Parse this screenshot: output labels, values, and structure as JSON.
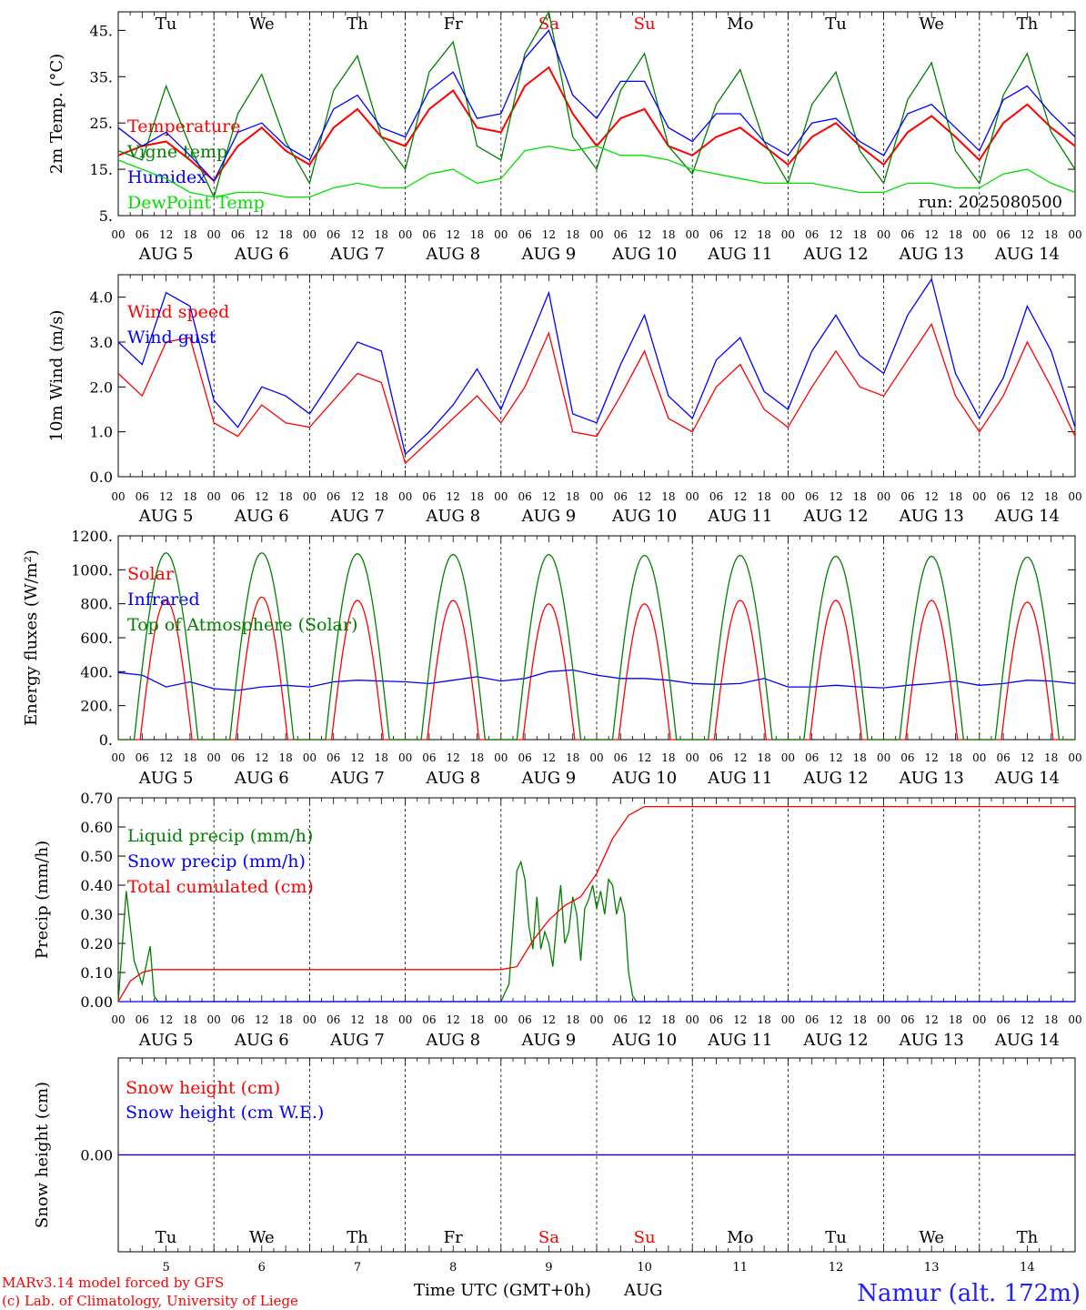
{
  "days": {
    "names": [
      "Tu",
      "We",
      "Th",
      "Fr",
      "Sa",
      "Su",
      "Mo",
      "Tu",
      "We",
      "Th"
    ],
    "dates": [
      "AUG  5",
      "AUG  6",
      "AUG  7",
      "AUG  8",
      "AUG  9",
      "AUG 10",
      "AUG 11",
      "AUG 12",
      "AUG 13",
      "AUG 14"
    ],
    "day_numbers": [
      "5",
      "6",
      "7",
      "8",
      "9",
      "10",
      "11",
      "12",
      "13",
      "14"
    ],
    "hour_ticks": [
      "00",
      "06",
      "12",
      "18"
    ],
    "final_tick": "00",
    "weekend_color": "#ff0000",
    "weekend_indices": [
      4,
      5
    ]
  },
  "run_label": "run: 2025080500",
  "footer": {
    "model": "MARv3.14 model forced by GFS",
    "lab": "(c) Lab. of Climatology, University of Liege",
    "xlabel": "Time UTC (GMT+0h)",
    "month": "AUG",
    "station": "Namur (alt. 172m)"
  },
  "colors": {
    "red": "#ff0000",
    "green": "#008000",
    "blue": "#0000ff",
    "light_green": "#00e000"
  },
  "chart_data": [
    {
      "type": "line",
      "panel": "temperature",
      "ylabel": "2m Temp. (°C)",
      "ylim": [
        5,
        49
      ],
      "yticks": [
        5,
        15,
        25,
        35,
        45
      ],
      "ytick_labels": [
        "5.",
        "15.",
        "25.",
        "35.",
        "45."
      ],
      "x_hours": [
        0,
        6,
        12,
        18,
        24,
        30,
        36,
        42,
        48,
        54,
        60,
        66,
        72,
        78,
        84,
        90,
        96,
        102,
        108,
        114,
        120,
        126,
        132,
        138,
        144,
        150,
        156,
        162,
        168,
        174,
        180,
        186,
        192,
        198,
        204,
        210,
        216,
        222,
        228,
        234,
        240
      ],
      "series": [
        {
          "name": "Temperature",
          "color": "#ff0000",
          "values": [
            18,
            20,
            21,
            17,
            12.5,
            20,
            24,
            19,
            16,
            24,
            28,
            22,
            20,
            28,
            32,
            24,
            23,
            33,
            37,
            27,
            20,
            26,
            28,
            20,
            18,
            22,
            24,
            20,
            16,
            22,
            25,
            20,
            16,
            23,
            26.5,
            22,
            17,
            25,
            29,
            24,
            20
          ]
        },
        {
          "name": "Vigne temp",
          "color": "#008000",
          "values": [
            19,
            17,
            33,
            20,
            9,
            27,
            35.5,
            21,
            12,
            32,
            39.5,
            22,
            15,
            36,
            42.5,
            20,
            17,
            40,
            49,
            22,
            15,
            32,
            40,
            20,
            14,
            29,
            36.5,
            21,
            12,
            29,
            36,
            19,
            12,
            30,
            38,
            19,
            12,
            31,
            40,
            23,
            15
          ]
        },
        {
          "name": "Humidex",
          "color": "#0000ff",
          "values": [
            24,
            20,
            23,
            18,
            12.5,
            23,
            25,
            20,
            17,
            28,
            31,
            24,
            22,
            32,
            36,
            26,
            27,
            39,
            45,
            31,
            26,
            34,
            34,
            24,
            21,
            27,
            27,
            21,
            18,
            25,
            26,
            21,
            18,
            27,
            29,
            24,
            19,
            30,
            33,
            27,
            22
          ]
        },
        {
          "name": "DewPoint Temp",
          "color": "#00e000",
          "values": [
            17,
            15,
            13,
            10,
            9,
            10,
            10,
            9,
            9,
            11,
            12,
            11,
            11,
            14,
            15,
            12,
            13,
            19,
            20,
            19,
            20,
            18,
            18,
            17,
            15,
            14,
            13,
            12,
            12,
            12,
            11,
            10,
            10,
            12,
            12,
            11,
            11,
            14,
            15,
            12,
            10
          ]
        }
      ]
    },
    {
      "type": "line",
      "panel": "wind",
      "ylabel": "10m Wind (m/s)",
      "ylim": [
        0,
        4.5
      ],
      "yticks": [
        0,
        1,
        2,
        3,
        4
      ],
      "ytick_labels": [
        "0.0",
        "1.0",
        "2.0",
        "3.0",
        "4.0"
      ],
      "x_hours": [
        0,
        6,
        12,
        18,
        24,
        30,
        36,
        42,
        48,
        54,
        60,
        66,
        72,
        78,
        84,
        90,
        96,
        102,
        108,
        114,
        120,
        126,
        132,
        138,
        144,
        150,
        156,
        162,
        168,
        174,
        180,
        186,
        192,
        198,
        204,
        210,
        216,
        222,
        228,
        234,
        240
      ],
      "series": [
        {
          "name": "Wind speed",
          "color": "#ff0000",
          "values": [
            2.3,
            1.8,
            3.0,
            3.1,
            1.2,
            0.9,
            1.6,
            1.2,
            1.1,
            1.7,
            2.3,
            2.1,
            0.3,
            0.8,
            1.3,
            1.8,
            1.2,
            2.0,
            3.2,
            1.0,
            0.9,
            1.8,
            2.8,
            1.3,
            1.0,
            2.0,
            2.5,
            1.5,
            1.1,
            2.0,
            2.8,
            2.0,
            1.8,
            2.6,
            3.4,
            1.8,
            1.0,
            1.8,
            3.0,
            2.0,
            0.9
          ]
        },
        {
          "name": "Wind gust",
          "color": "#0000ff",
          "values": [
            3.0,
            2.5,
            4.1,
            3.8,
            1.7,
            1.1,
            2.0,
            1.8,
            1.4,
            2.2,
            3.0,
            2.8,
            0.5,
            1.0,
            1.6,
            2.4,
            1.5,
            2.8,
            4.1,
            1.4,
            1.2,
            2.5,
            3.6,
            1.8,
            1.3,
            2.6,
            3.1,
            1.9,
            1.5,
            2.8,
            3.6,
            2.7,
            2.3,
            3.6,
            4.4,
            2.3,
            1.3,
            2.2,
            3.8,
            2.8,
            1.1
          ]
        }
      ]
    },
    {
      "type": "line",
      "panel": "energy",
      "ylabel": "Energy fluxes (W/m²)",
      "ylim": [
        0,
        1200
      ],
      "yticks": [
        0,
        200,
        400,
        600,
        800,
        1000,
        1200
      ],
      "ytick_labels": [
        "0.",
        "200.",
        "400.",
        "600.",
        "800.",
        "1000.",
        "1200."
      ],
      "series": [
        {
          "name": "Solar",
          "color": "#ff0000",
          "daily_peaks": [
            820,
            840,
            820,
            820,
            800,
            800,
            820,
            820,
            820,
            810
          ]
        },
        {
          "name": "Infrared",
          "color": "#0000ff",
          "x_hours": [
            0,
            6,
            12,
            18,
            24,
            30,
            36,
            42,
            48,
            54,
            60,
            66,
            72,
            78,
            84,
            90,
            96,
            102,
            108,
            114,
            120,
            126,
            132,
            138,
            144,
            150,
            156,
            162,
            168,
            174,
            180,
            186,
            192,
            198,
            204,
            210,
            216,
            222,
            228,
            234,
            240
          ],
          "values": [
            395,
            380,
            310,
            340,
            300,
            290,
            310,
            320,
            310,
            340,
            350,
            345,
            340,
            330,
            350,
            370,
            345,
            360,
            400,
            410,
            380,
            360,
            360,
            350,
            330,
            325,
            330,
            360,
            310,
            310,
            320,
            310,
            305,
            320,
            330,
            345,
            320,
            330,
            350,
            345,
            330
          ]
        },
        {
          "name": "Top of Atmosphere (Solar)",
          "color": "#008000",
          "daily_peaks": [
            1100,
            1100,
            1095,
            1090,
            1090,
            1085,
            1085,
            1080,
            1080,
            1075
          ]
        }
      ]
    },
    {
      "type": "line",
      "panel": "precip",
      "ylabel": "Precip (mm/h)",
      "ylim": [
        0,
        0.7
      ],
      "yticks": [
        0,
        0.1,
        0.2,
        0.3,
        0.4,
        0.5,
        0.6,
        0.7
      ],
      "ytick_labels": [
        "0.00",
        "0.10",
        "0.20",
        "0.30",
        "0.40",
        "0.50",
        "0.60",
        "0.70"
      ],
      "series": [
        {
          "name": "Liquid precip (mm/h)",
          "color": "#008000",
          "x_hours": [
            0,
            2,
            4,
            6,
            8,
            9,
            10,
            12,
            96,
            98,
            100,
            101,
            102,
            103,
            104,
            105,
            106,
            107,
            108,
            109,
            110,
            111,
            112,
            113,
            114,
            115,
            116,
            117,
            118,
            119,
            120,
            121,
            122,
            123,
            124,
            125,
            126,
            127,
            128,
            129,
            130,
            132,
            240
          ],
          "values": [
            0,
            0.38,
            0.14,
            0.06,
            0.19,
            0.02,
            0,
            0,
            0,
            0.06,
            0.45,
            0.48,
            0.42,
            0.26,
            0.18,
            0.36,
            0.18,
            0.24,
            0.2,
            0.12,
            0.28,
            0.4,
            0.2,
            0.24,
            0.36,
            0.3,
            0.14,
            0.32,
            0.35,
            0.4,
            0.32,
            0.38,
            0.3,
            0.42,
            0.4,
            0.3,
            0.36,
            0.3,
            0.1,
            0.02,
            0,
            0,
            0
          ]
        },
        {
          "name": "Snow precip (mm/h)",
          "color": "#0000ff",
          "x_hours": [
            0,
            240
          ],
          "values": [
            0,
            0
          ]
        },
        {
          "name": "Total cumulated (cm)",
          "color": "#ff0000",
          "x_hours": [
            0,
            3,
            6,
            9,
            12,
            96,
            100,
            104,
            108,
            112,
            116,
            120,
            124,
            128,
            132,
            240
          ],
          "values": [
            0,
            0.07,
            0.1,
            0.11,
            0.11,
            0.11,
            0.12,
            0.21,
            0.28,
            0.33,
            0.36,
            0.44,
            0.56,
            0.64,
            0.67,
            0.67
          ]
        }
      ]
    },
    {
      "type": "line",
      "panel": "snow",
      "ylabel": "Snow height (cm)",
      "ylim": [
        -0.5,
        0.5
      ],
      "yticks": [
        0
      ],
      "ytick_labels": [
        "0.00"
      ],
      "series": [
        {
          "name": "Snow height (cm)",
          "color": "#ff0000",
          "x_hours": [
            0,
            240
          ],
          "values": [
            0,
            0
          ]
        },
        {
          "name": "Snow height (cm W.E.)",
          "color": "#0000ff",
          "x_hours": [
            0,
            240
          ],
          "values": [
            0,
            0
          ]
        }
      ]
    }
  ]
}
